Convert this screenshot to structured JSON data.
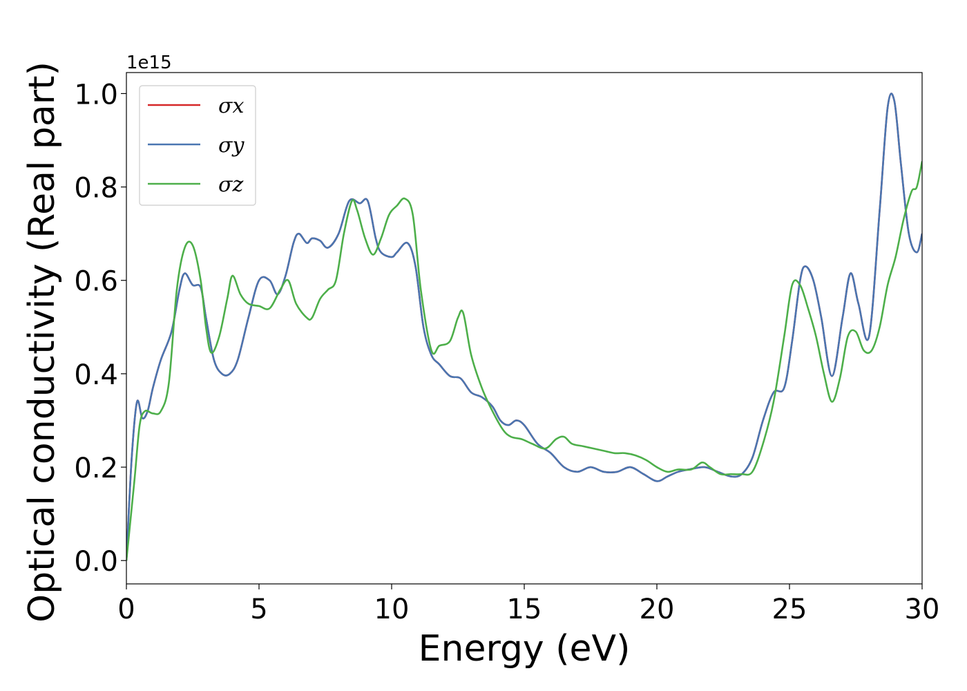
{
  "chart_data": {
    "type": "line",
    "xlabel": "Energy (eV)",
    "ylabel": "Optical conductivity (Real part)",
    "xlim": [
      0,
      30
    ],
    "ylim": [
      -0.05,
      1.045
    ],
    "y_offset_label": "1e15",
    "y_scale_factor": 1000000000000000.0,
    "grid": false,
    "legend_position": "upper left",
    "x_ticks": [
      0,
      5,
      10,
      15,
      20,
      25,
      30
    ],
    "x_tick_labels": [
      "0",
      "5",
      "10",
      "15",
      "20",
      "25",
      "30"
    ],
    "y_ticks": [
      0.0,
      0.2,
      0.4,
      0.6,
      0.8,
      1.0
    ],
    "y_tick_labels": [
      "0.0",
      "0.2",
      "0.4",
      "0.6",
      "0.8",
      "1.0"
    ],
    "series": [
      {
        "name": "σx",
        "color": "#d62728",
        "x": [
          0,
          0.2,
          0.4,
          0.6,
          0.8,
          1.0,
          1.3,
          1.7,
          2.0,
          2.2,
          2.5,
          2.8,
          3.0,
          3.3,
          3.6,
          3.9,
          4.2,
          4.6,
          5.0,
          5.4,
          5.7,
          6.0,
          6.3,
          6.5,
          6.8,
          7.0,
          7.3,
          7.6,
          8.0,
          8.4,
          8.8,
          9.1,
          9.4,
          9.6,
          10.0,
          10.2,
          10.6,
          10.9,
          11.2,
          11.5,
          11.8,
          12.2,
          12.6,
          13.0,
          13.4,
          13.8,
          14.1,
          14.4,
          14.7,
          15.0,
          15.5,
          16.0,
          16.5,
          17.0,
          17.5,
          18.0,
          18.5,
          19.0,
          19.5,
          20.0,
          20.4,
          20.8,
          21.2,
          21.8,
          22.3,
          22.8,
          23.2,
          23.6,
          24.0,
          24.4,
          24.8,
          25.1,
          25.4,
          25.6,
          25.9,
          26.2,
          26.6,
          27.0,
          27.3,
          27.6,
          28.0,
          28.4,
          28.7,
          28.95,
          29.2,
          29.5,
          29.8,
          30.0
        ],
        "y": [
          0.0,
          0.22,
          0.34,
          0.305,
          0.32,
          0.37,
          0.43,
          0.49,
          0.58,
          0.615,
          0.59,
          0.585,
          0.52,
          0.43,
          0.4,
          0.4,
          0.43,
          0.52,
          0.6,
          0.6,
          0.57,
          0.61,
          0.68,
          0.7,
          0.68,
          0.69,
          0.685,
          0.67,
          0.7,
          0.77,
          0.765,
          0.77,
          0.69,
          0.66,
          0.65,
          0.66,
          0.68,
          0.63,
          0.5,
          0.44,
          0.42,
          0.395,
          0.39,
          0.36,
          0.35,
          0.33,
          0.3,
          0.29,
          0.3,
          0.29,
          0.25,
          0.23,
          0.2,
          0.19,
          0.2,
          0.19,
          0.19,
          0.2,
          0.185,
          0.17,
          0.18,
          0.19,
          0.195,
          0.2,
          0.19,
          0.18,
          0.185,
          0.22,
          0.3,
          0.36,
          0.37,
          0.47,
          0.6,
          0.63,
          0.6,
          0.52,
          0.395,
          0.52,
          0.615,
          0.55,
          0.48,
          0.75,
          0.97,
          0.985,
          0.85,
          0.7,
          0.66,
          0.7
        ]
      },
      {
        "name": "σy",
        "color": "#4a76b1",
        "x": [
          0,
          0.2,
          0.4,
          0.6,
          0.8,
          1.0,
          1.3,
          1.7,
          2.0,
          2.2,
          2.5,
          2.8,
          3.0,
          3.3,
          3.6,
          3.9,
          4.2,
          4.6,
          5.0,
          5.4,
          5.7,
          6.0,
          6.3,
          6.5,
          6.8,
          7.0,
          7.3,
          7.6,
          8.0,
          8.4,
          8.8,
          9.1,
          9.4,
          9.6,
          10.0,
          10.2,
          10.6,
          10.9,
          11.2,
          11.5,
          11.8,
          12.2,
          12.6,
          13.0,
          13.4,
          13.8,
          14.1,
          14.4,
          14.7,
          15.0,
          15.5,
          16.0,
          16.5,
          17.0,
          17.5,
          18.0,
          18.5,
          19.0,
          19.5,
          20.0,
          20.4,
          20.8,
          21.2,
          21.8,
          22.3,
          22.8,
          23.2,
          23.6,
          24.0,
          24.4,
          24.8,
          25.1,
          25.4,
          25.6,
          25.9,
          26.2,
          26.6,
          27.0,
          27.3,
          27.6,
          28.0,
          28.4,
          28.7,
          28.95,
          29.2,
          29.5,
          29.8,
          30.0
        ],
        "y": [
          0.0,
          0.22,
          0.34,
          0.305,
          0.32,
          0.37,
          0.43,
          0.49,
          0.58,
          0.615,
          0.59,
          0.585,
          0.52,
          0.43,
          0.4,
          0.4,
          0.43,
          0.52,
          0.6,
          0.6,
          0.57,
          0.61,
          0.68,
          0.7,
          0.68,
          0.69,
          0.685,
          0.67,
          0.7,
          0.77,
          0.765,
          0.77,
          0.69,
          0.66,
          0.65,
          0.66,
          0.68,
          0.63,
          0.5,
          0.44,
          0.42,
          0.395,
          0.39,
          0.36,
          0.35,
          0.33,
          0.3,
          0.29,
          0.3,
          0.29,
          0.25,
          0.23,
          0.2,
          0.19,
          0.2,
          0.19,
          0.19,
          0.2,
          0.185,
          0.17,
          0.18,
          0.19,
          0.195,
          0.2,
          0.19,
          0.18,
          0.185,
          0.22,
          0.3,
          0.36,
          0.37,
          0.47,
          0.6,
          0.63,
          0.6,
          0.52,
          0.395,
          0.52,
          0.615,
          0.55,
          0.48,
          0.75,
          0.97,
          0.985,
          0.85,
          0.7,
          0.66,
          0.7
        ]
      },
      {
        "name": "σz",
        "color": "#4daf4a",
        "x": [
          0,
          0.3,
          0.5,
          0.7,
          1.0,
          1.3,
          1.6,
          1.9,
          2.2,
          2.5,
          2.8,
          3.0,
          3.2,
          3.5,
          3.8,
          4.0,
          4.3,
          4.6,
          5.0,
          5.4,
          5.8,
          6.1,
          6.4,
          6.8,
          7.0,
          7.3,
          7.6,
          7.9,
          8.2,
          8.5,
          8.7,
          9.0,
          9.3,
          9.6,
          9.9,
          10.2,
          10.5,
          10.8,
          11.1,
          11.5,
          11.8,
          12.2,
          12.5,
          12.7,
          13.0,
          13.4,
          13.8,
          14.2,
          14.5,
          14.9,
          15.3,
          15.8,
          16.2,
          16.5,
          16.8,
          17.2,
          17.6,
          18.0,
          18.4,
          18.8,
          19.2,
          19.6,
          20.0,
          20.4,
          20.8,
          21.3,
          21.7,
          22.0,
          22.4,
          22.8,
          23.2,
          23.6,
          24.0,
          24.4,
          24.8,
          25.1,
          25.4,
          25.7,
          26.0,
          26.3,
          26.6,
          26.9,
          27.2,
          27.5,
          27.8,
          28.1,
          28.4,
          28.7,
          29.0,
          29.3,
          29.6,
          29.8,
          30.0
        ],
        "y": [
          0.0,
          0.17,
          0.29,
          0.32,
          0.315,
          0.32,
          0.38,
          0.58,
          0.67,
          0.675,
          0.6,
          0.5,
          0.445,
          0.48,
          0.56,
          0.61,
          0.57,
          0.55,
          0.545,
          0.54,
          0.58,
          0.6,
          0.55,
          0.52,
          0.52,
          0.56,
          0.58,
          0.6,
          0.7,
          0.77,
          0.75,
          0.69,
          0.655,
          0.69,
          0.74,
          0.76,
          0.775,
          0.74,
          0.58,
          0.45,
          0.46,
          0.47,
          0.52,
          0.53,
          0.44,
          0.37,
          0.32,
          0.28,
          0.265,
          0.26,
          0.25,
          0.24,
          0.26,
          0.265,
          0.25,
          0.245,
          0.24,
          0.235,
          0.23,
          0.23,
          0.225,
          0.215,
          0.2,
          0.19,
          0.195,
          0.195,
          0.21,
          0.2,
          0.185,
          0.185,
          0.185,
          0.19,
          0.25,
          0.34,
          0.48,
          0.59,
          0.59,
          0.54,
          0.48,
          0.4,
          0.34,
          0.39,
          0.48,
          0.49,
          0.45,
          0.45,
          0.5,
          0.59,
          0.65,
          0.73,
          0.79,
          0.8,
          0.855
        ]
      }
    ]
  }
}
